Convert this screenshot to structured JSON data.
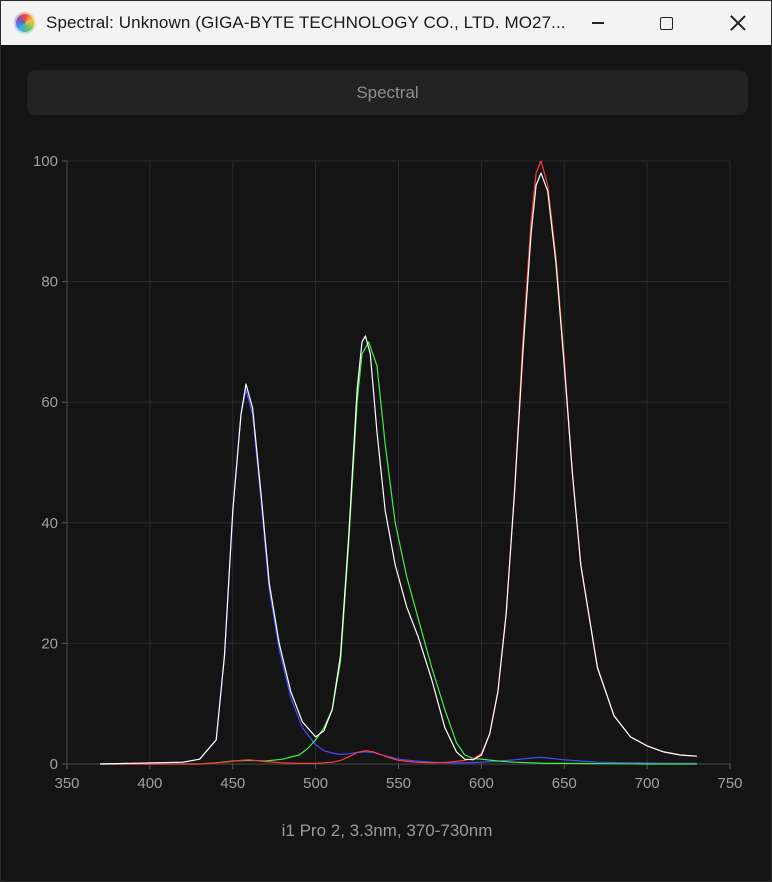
{
  "window": {
    "title": "Spectral: Unknown (GIGA-BYTE TECHNOLOGY CO., LTD. MO27..."
  },
  "toolbar": {
    "spectral_label": "Spectral"
  },
  "caption": "i1 Pro 2, 3.3nm, 370-730nm",
  "colors": {
    "total": "#ffffff",
    "red": "#ff3b3b",
    "green": "#44ee44",
    "blue": "#4b4bff",
    "grid": "#2b2b2b",
    "tick": "#a0a0a0"
  },
  "chart_data": {
    "type": "line",
    "xlim": [
      350,
      750
    ],
    "ylim": [
      0,
      100
    ],
    "xticks": [
      350,
      400,
      450,
      500,
      550,
      600,
      650,
      700,
      750
    ],
    "yticks": [
      0,
      20,
      40,
      60,
      80,
      100
    ],
    "grid": true,
    "series": [
      {
        "color": "white",
        "x": [
          370,
          420,
          430,
          440,
          445,
          450,
          455,
          458,
          462,
          467,
          472,
          478,
          485,
          492,
          500,
          505,
          510,
          515,
          520,
          525,
          528,
          530,
          533,
          537,
          542,
          548,
          555,
          562,
          570,
          578,
          585,
          590,
          595,
          600,
          605,
          610,
          615,
          620,
          625,
          630,
          633,
          636,
          640,
          645,
          650,
          655,
          660,
          670,
          680,
          690,
          700,
          710,
          720,
          730
        ],
        "y": [
          0,
          0.3,
          0.8,
          4,
          18,
          42,
          58,
          63,
          59,
          45,
          30,
          20,
          12,
          7,
          4.5,
          5.5,
          9,
          18,
          38,
          62,
          70,
          71,
          68,
          55,
          42,
          33,
          26,
          21,
          14,
          6,
          2,
          0.8,
          0.7,
          1.5,
          5,
          12,
          25,
          45,
          68,
          88,
          96,
          98,
          95,
          83,
          66,
          48,
          33,
          16,
          8,
          4.5,
          3,
          2,
          1.5,
          1.3
        ]
      },
      {
        "color": "red",
        "x": [
          370,
          430,
          445,
          455,
          460,
          470,
          480,
          490,
          500,
          505,
          510,
          515,
          520,
          525,
          530,
          535,
          540,
          545,
          550,
          560,
          570,
          580,
          590,
          595,
          600,
          605,
          610,
          615,
          620,
          625,
          630,
          633,
          636,
          640,
          645,
          650,
          655,
          660,
          670,
          680,
          690,
          700,
          710,
          720,
          730
        ],
        "y": [
          0,
          0,
          0.3,
          0.6,
          0.7,
          0.4,
          0.2,
          0.1,
          0.1,
          0.2,
          0.3,
          0.6,
          1.2,
          1.9,
          2.2,
          2.0,
          1.5,
          1.0,
          0.6,
          0.3,
          0.2,
          0.3,
          0.6,
          0.9,
          1.7,
          5,
          12,
          25,
          45,
          70,
          90,
          98,
          100,
          96,
          84,
          67,
          48,
          33,
          16,
          8,
          4.5,
          3,
          2,
          1.5,
          1.3
        ]
      },
      {
        "color": "green",
        "x": [
          370,
          430,
          440,
          450,
          460,
          470,
          480,
          490,
          495,
          500,
          505,
          510,
          515,
          520,
          525,
          528,
          532,
          537,
          542,
          548,
          555,
          562,
          570,
          578,
          585,
          590,
          595,
          600,
          610,
          620,
          630,
          640,
          650,
          700,
          730
        ],
        "y": [
          0,
          0,
          0.2,
          0.5,
          0.6,
          0.5,
          0.8,
          1.5,
          2.5,
          4,
          6,
          9,
          17,
          37,
          60,
          68,
          70,
          66,
          53,
          40,
          31,
          24,
          16,
          9,
          3.5,
          1.5,
          0.9,
          0.8,
          0.5,
          0.3,
          0.2,
          0.1,
          0.1,
          0,
          0
        ]
      },
      {
        "color": "blue",
        "x": [
          370,
          420,
          430,
          440,
          445,
          450,
          455,
          458,
          462,
          467,
          472,
          478,
          485,
          492,
          500,
          505,
          510,
          515,
          520,
          525,
          530,
          535,
          540,
          550,
          560,
          570,
          580,
          590,
          600,
          610,
          620,
          630,
          636,
          640,
          650,
          660,
          670,
          690,
          710,
          730
        ],
        "y": [
          0,
          0.3,
          0.8,
          4,
          18,
          42,
          58,
          62,
          58,
          44,
          29,
          19,
          11,
          6,
          3.2,
          2.2,
          1.8,
          1.6,
          1.7,
          1.9,
          2.0,
          1.9,
          1.5,
          0.8,
          0.5,
          0.3,
          0.2,
          0.2,
          0.3,
          0.5,
          0.7,
          1.0,
          1.1,
          1.0,
          0.7,
          0.5,
          0.3,
          0.2,
          0.1,
          0.1
        ]
      }
    ]
  }
}
